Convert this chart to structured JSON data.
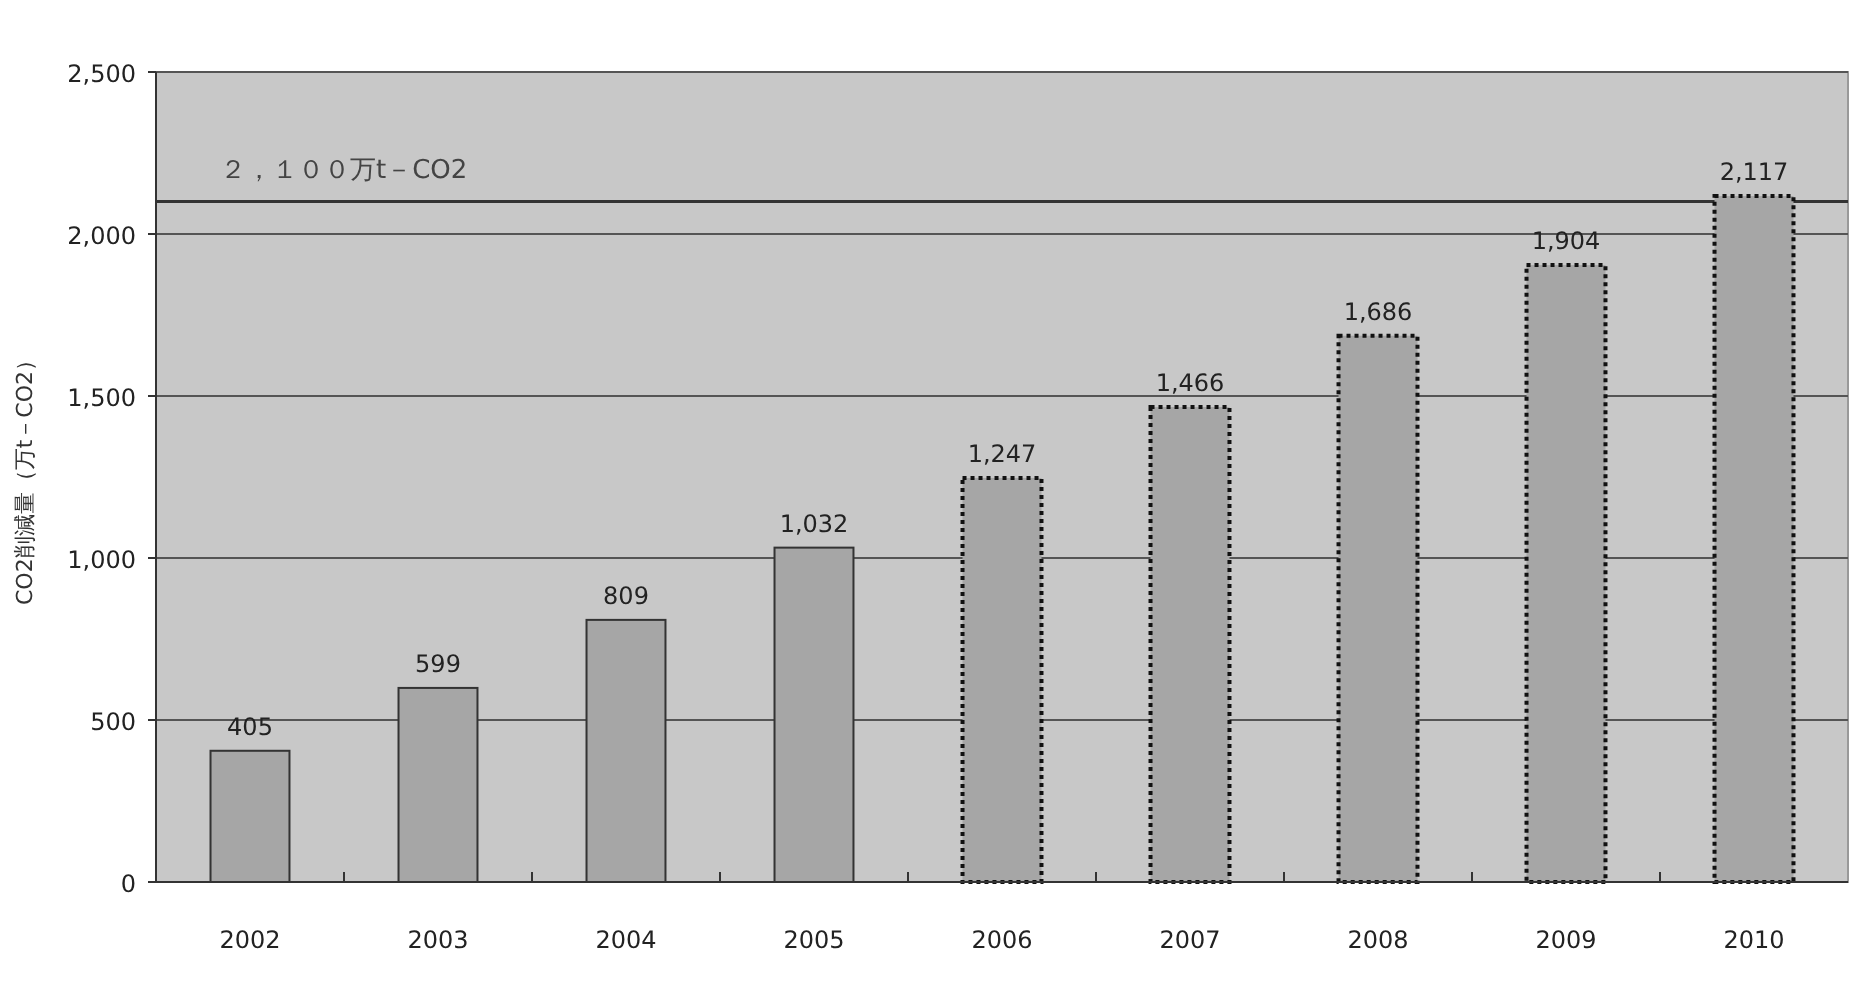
{
  "chart_data": {
    "type": "bar",
    "ylabel": "CO2削減量（万t－CO2）",
    "categories": [
      "2002",
      "2003",
      "2004",
      "2005",
      "2006",
      "2007",
      "2008",
      "2009",
      "2010"
    ],
    "series": [
      {
        "color": "#a6a6a6",
        "line_style": "solid",
        "values": [
          405,
          599,
          809,
          1032,
          null,
          null,
          null,
          null,
          null
        ],
        "value_labels": [
          "405",
          "599",
          "809",
          "1,032",
          null,
          null,
          null,
          null,
          null
        ]
      },
      {
        "color": "#a6a6a6",
        "line_style": "dotted",
        "values": [
          null,
          null,
          null,
          null,
          1247,
          1466,
          1686,
          1904,
          2117
        ],
        "value_labels": [
          null,
          null,
          null,
          null,
          "1,247",
          "1,466",
          "1,686",
          "1,904",
          "2,117"
        ]
      }
    ],
    "ylim": [
      0,
      2500
    ],
    "yticks": [
      0,
      {
        "value": 500,
        "label": "500"
      },
      {
        "value": 1000,
        "label": "1,000"
      },
      {
        "value": 1500,
        "label": "1,500"
      },
      {
        "value": 2000,
        "label": "2,000"
      },
      {
        "value": 2500,
        "label": "2,500"
      }
    ],
    "grid": "y",
    "ref_lines": [
      {
        "axis": "y",
        "value": 2100,
        "label": "２，１００万t－CO2",
        "color": "#333333"
      }
    ]
  }
}
